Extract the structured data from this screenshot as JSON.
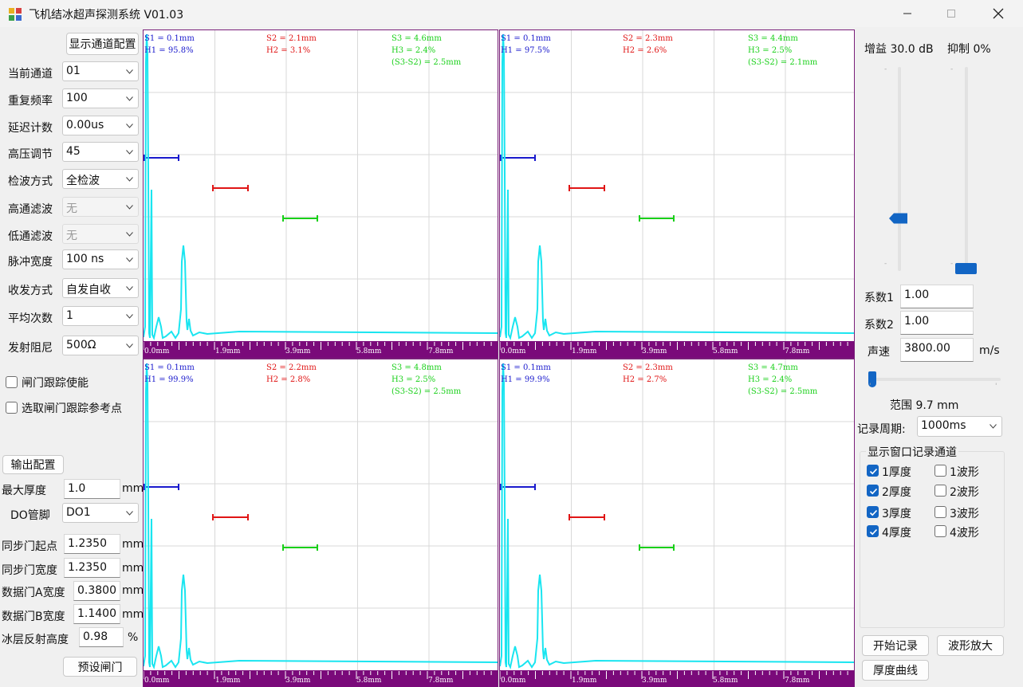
{
  "window": {
    "title": "飞机结冰超声探测系统 V01.03"
  },
  "left": {
    "show_channel_config": "显示通道配置",
    "params": [
      {
        "label": "当前通道",
        "value": "01",
        "enabled": true
      },
      {
        "label": "重复频率",
        "value": "100",
        "enabled": true
      },
      {
        "label": "延迟计数",
        "value": "0.00us",
        "enabled": true
      },
      {
        "label": "高压调节",
        "value": "45",
        "enabled": true
      },
      {
        "label": "检波方式",
        "value": "全检波",
        "enabled": true
      },
      {
        "label": "高通滤波",
        "value": "无",
        "enabled": false
      },
      {
        "label": "低通滤波",
        "value": "无",
        "enabled": false
      },
      {
        "label": "脉冲宽度",
        "value": "100 ns",
        "enabled": true
      },
      {
        "label": "收发方式",
        "value": "自发自收",
        "enabled": true
      },
      {
        "label": "平均次数",
        "value": "1",
        "enabled": true
      },
      {
        "label": "发射阻尼",
        "value": "500Ω",
        "enabled": true
      }
    ],
    "gate_tracking_enable": {
      "label": "闸门跟踪使能",
      "checked": false
    },
    "gate_tracking_ref": {
      "label": "选取闸门跟踪参考点",
      "checked": false
    },
    "output_config": "输出配置",
    "max_thickness": {
      "label": "最大厚度",
      "value": "1.0",
      "unit": "mm"
    },
    "do_pin": {
      "label": "DO管脚",
      "value": "DO1"
    },
    "sync_gate_start": {
      "label": "同步门起点",
      "value": "1.2350",
      "unit": "mm"
    },
    "sync_gate_width": {
      "label": "同步门宽度",
      "value": "1.2350",
      "unit": "mm"
    },
    "data_gate_a_width": {
      "label": "数据门A宽度",
      "value": "0.3800",
      "unit": "mm"
    },
    "data_gate_b_width": {
      "label": "数据门B宽度",
      "value": "1.1400",
      "unit": "mm"
    },
    "ice_reflect_height": {
      "label": "冰层反射高度",
      "value": "0.98",
      "unit": "%"
    },
    "preset_gate": "预设闸门"
  },
  "panels": [
    {
      "s1": "S1 = 0.1mm",
      "h1": "H1 = 95.8%",
      "s2": "S2 = 2.1mm",
      "h2": "H2 = 3.1%",
      "s3": "S3 = 4.6mm",
      "h3": "H3 = 2.4%",
      "diff": "(S3-S2) = 2.5mm"
    },
    {
      "s1": "S1 = 0.1mm",
      "h1": "H1 = 97.5%",
      "s2": "S2 = 2.3mm",
      "h2": "H2 = 2.6%",
      "s3": "S3 = 4.4mm",
      "h3": "H3 = 2.5%",
      "diff": "(S3-S2) = 2.1mm"
    },
    {
      "s1": "S1 = 0.1mm",
      "h1": "H1 = 99.9%",
      "s2": "S2 = 2.2mm",
      "h2": "H2 = 2.8%",
      "s3": "S3 = 4.8mm",
      "h3": "H3 = 2.5%",
      "diff": "(S3-S2) = 2.5mm"
    },
    {
      "s1": "S1 = 0.1mm",
      "h1": "H1 = 99.9%",
      "s2": "S2 = 2.3mm",
      "h2": "H2 = 2.7%",
      "s3": "S3 = 4.7mm",
      "h3": "H3 = 2.4%",
      "diff": "(S3-S2) = 2.5mm"
    }
  ],
  "axis_labels": [
    "0.0mm",
    "1.9mm",
    "3.9mm",
    "5.8mm",
    "7.8mm"
  ],
  "right": {
    "gain": "增益 30.0 dB",
    "suppress": "抑制 0%",
    "gain_level_db": 30.0,
    "suppress_level_pct": 0,
    "coef1": {
      "label": "系数1",
      "value": "1.00"
    },
    "coef2": {
      "label": "系数2",
      "value": "1.00"
    },
    "sound_speed": {
      "label": "声速",
      "value": "3800.00",
      "unit": "m/s"
    },
    "range": "范围 9.7 mm",
    "record_period": {
      "label": "记录周期:",
      "value": "1000ms"
    },
    "record_group_title": "显示窗口记录通道",
    "channels": [
      {
        "thick": "1厚度",
        "thick_checked": true,
        "wave": "1波形",
        "wave_checked": false
      },
      {
        "thick": "2厚度",
        "thick_checked": true,
        "wave": "2波形",
        "wave_checked": false
      },
      {
        "thick": "3厚度",
        "thick_checked": true,
        "wave": "3波形",
        "wave_checked": false
      },
      {
        "thick": "4厚度",
        "thick_checked": true,
        "wave": "4波形",
        "wave_checked": false
      }
    ],
    "start_record": "开始记录",
    "wave_zoom": "波形放大",
    "thickness_curve": "厚度曲线"
  },
  "colors": {
    "gate1": "#1a1acd",
    "gate2": "#e01515",
    "gate3": "#19d019",
    "waveform": "#19e5f0",
    "axis_bar": "#7a0a7a",
    "accent": "#1265c4"
  }
}
